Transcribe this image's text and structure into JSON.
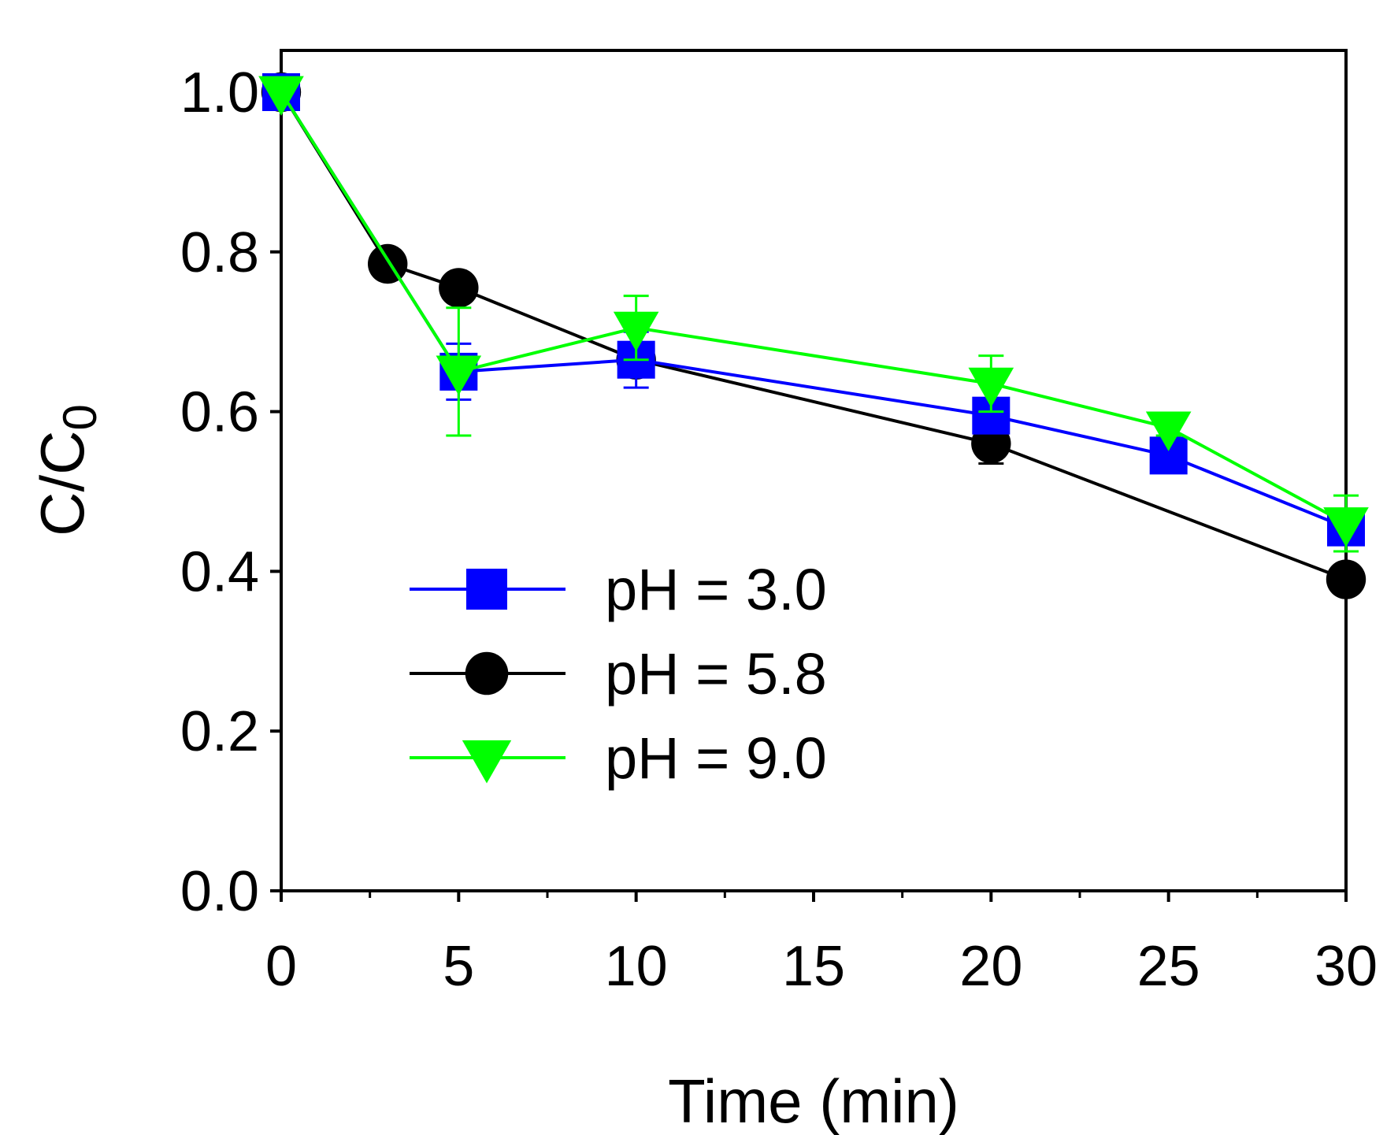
{
  "chart_data": {
    "type": "line",
    "title": "",
    "xlabel": "Time (min)",
    "ylabel": "C/C",
    "ylabel_subscript": "0",
    "xlim": [
      0,
      30
    ],
    "ylim": [
      0,
      1.0
    ],
    "xticks": [
      0,
      5,
      10,
      15,
      20,
      25,
      30
    ],
    "xtick_labels": [
      "0",
      "5",
      "10",
      "15",
      "20",
      "25",
      "30"
    ],
    "yticks": [
      0.0,
      0.2,
      0.4,
      0.6,
      0.8,
      1.0
    ],
    "ytick_labels": [
      "0.0",
      "0.2",
      "0.4",
      "0.6",
      "0.8",
      "1.0"
    ],
    "grid": false,
    "legend_position": "center-left",
    "series": [
      {
        "name": "pH = 3.0",
        "color": "#0000ff",
        "marker": "square",
        "x": [
          0,
          5,
          10,
          20,
          25,
          30
        ],
        "y": [
          1.0,
          0.65,
          0.665,
          0.595,
          0.545,
          0.455
        ],
        "error": [
          0.0,
          0.035,
          0.035,
          0.015,
          0.01,
          0.01
        ]
      },
      {
        "name": "pH = 5.8",
        "color": "#000000",
        "marker": "circle",
        "x": [
          0,
          3,
          5,
          10,
          20,
          30
        ],
        "y": [
          1.0,
          0.785,
          0.755,
          0.665,
          0.56,
          0.39
        ],
        "error": [
          0.0,
          0.0,
          0.0,
          0.0,
          0.025,
          0.0
        ]
      },
      {
        "name": "pH = 9.0",
        "color": "#00ff00",
        "marker": "triangle-down",
        "x": [
          0,
          5,
          10,
          20,
          25,
          30
        ],
        "y": [
          1.0,
          0.65,
          0.705,
          0.635,
          0.58,
          0.46
        ],
        "error": [
          0.0,
          0.08,
          0.04,
          0.035,
          0.01,
          0.035
        ]
      }
    ]
  }
}
